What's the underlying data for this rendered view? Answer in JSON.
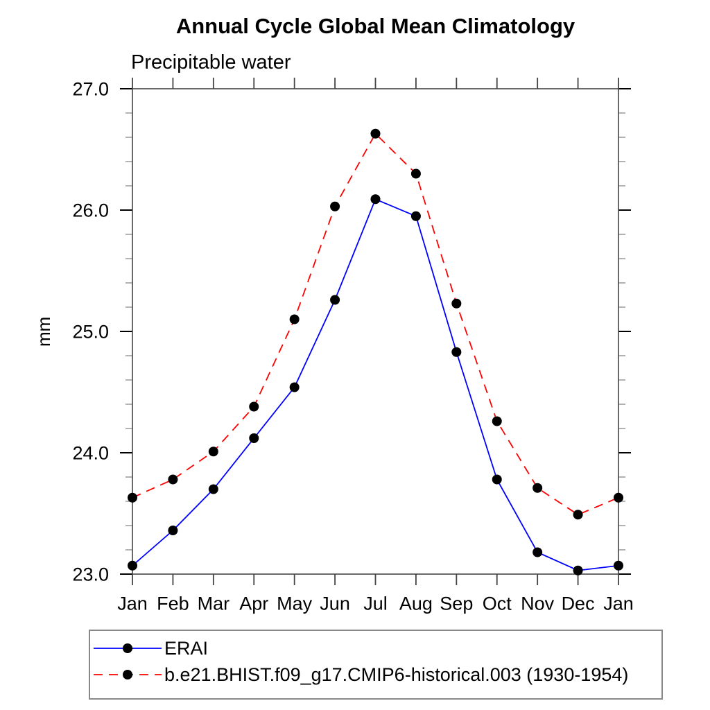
{
  "chart_data": {
    "type": "line",
    "title": "Annual Cycle Global Mean Climatology",
    "subtitle": "Precipitable water",
    "ylabel": "mm",
    "x_categories": [
      "Jan",
      "Feb",
      "Mar",
      "Apr",
      "May",
      "Jun",
      "Jul",
      "Aug",
      "Sep",
      "Oct",
      "Nov",
      "Dec",
      "Jan"
    ],
    "ylim": [
      23.0,
      27.0
    ],
    "ytick_major_step": 1.0,
    "ytick_minor_step": 0.2,
    "ytick_labels": [
      "23.0",
      "24.0",
      "25.0",
      "26.0",
      "27.0"
    ],
    "grid": false,
    "legend_position": "bottom-left",
    "marker": "filled-circle",
    "marker_color": "#000000",
    "axis_color": "#000000",
    "minor_tick_color": "#888888",
    "series": [
      {
        "name": "ERAI",
        "color": "#0000ff",
        "line_style": "solid",
        "values": [
          23.07,
          23.36,
          23.7,
          24.12,
          24.54,
          25.26,
          26.09,
          25.95,
          24.83,
          23.78,
          23.18,
          23.03,
          23.07
        ]
      },
      {
        "name": "b.e21.BHIST.f09_g17.CMIP6-historical.003 (1930-1954)",
        "color": "#ff0000",
        "line_style": "dashed",
        "values": [
          23.63,
          23.78,
          24.01,
          24.38,
          25.1,
          26.03,
          26.63,
          26.3,
          25.23,
          24.26,
          23.71,
          23.49,
          23.63
        ]
      }
    ]
  }
}
